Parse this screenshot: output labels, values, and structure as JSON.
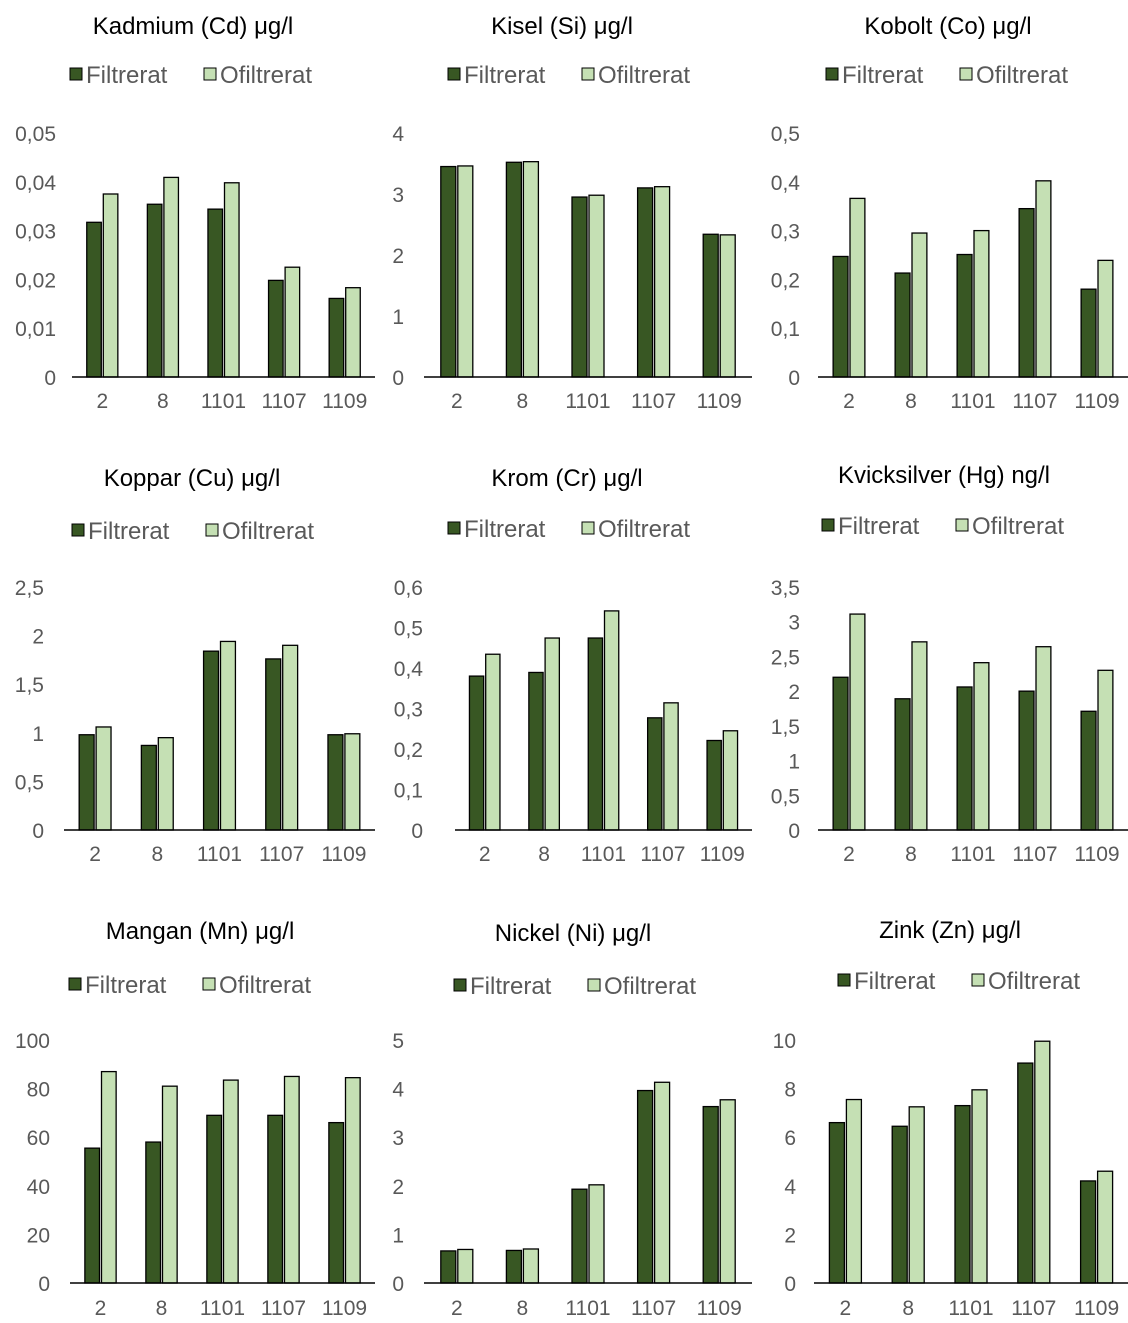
{
  "legend_labels": [
    "Filtrerat",
    "Ofiltrerat"
  ],
  "colors": {
    "filtrerat": "#385723",
    "ofiltrerat": "#C5E0B4",
    "bar_outline": "#000000",
    "axis": "#000000",
    "text": "#000000",
    "tick_text": "#595959"
  },
  "chart_data": [
    {
      "type": "bar",
      "title": "Kadmium (Cd) μg/l",
      "categories": [
        "2",
        "8",
        "1101",
        "1107",
        "1109"
      ],
      "yticks": [
        "0",
        "0,01",
        "0,02",
        "0,03",
        "0,04",
        "0,05"
      ],
      "ylim": [
        0,
        0.05
      ],
      "grid": false,
      "legend": "top-left",
      "series": [
        {
          "name": "Filtrerat",
          "values": [
            0.0317,
            0.0354,
            0.0344,
            0.0198,
            0.0161
          ]
        },
        {
          "name": "Ofiltrerat",
          "values": [
            0.0375,
            0.0409,
            0.0398,
            0.0225,
            0.0183
          ]
        }
      ]
    },
    {
      "type": "bar",
      "title": "Kisel (Si) μg/l",
      "categories": [
        "2",
        "8",
        "1101",
        "1107",
        "1109"
      ],
      "yticks": [
        "0",
        "1",
        "2",
        "3",
        "4"
      ],
      "ylim": [
        0,
        4
      ],
      "grid": false,
      "legend": "top-left",
      "series": [
        {
          "name": "Filtrerat",
          "values": [
            3.45,
            3.52,
            2.95,
            3.1,
            2.34
          ]
        },
        {
          "name": "Ofiltrerat",
          "values": [
            3.46,
            3.53,
            2.98,
            3.12,
            2.33
          ]
        }
      ]
    },
    {
      "type": "bar",
      "title": "Kobolt (Co) μg/l",
      "categories": [
        "2",
        "8",
        "1101",
        "1107",
        "1109"
      ],
      "yticks": [
        "0",
        "0,1",
        "0,2",
        "0,3",
        "0,4",
        "0,5"
      ],
      "ylim": [
        0,
        0.5
      ],
      "grid": false,
      "legend": "top-left",
      "series": [
        {
          "name": "Filtrerat",
          "values": [
            0.247,
            0.213,
            0.251,
            0.345,
            0.18
          ]
        },
        {
          "name": "Ofiltrerat",
          "values": [
            0.366,
            0.295,
            0.3,
            0.402,
            0.239
          ]
        }
      ]
    },
    {
      "type": "bar",
      "title": "Koppar (Cu) μg/l",
      "categories": [
        "2",
        "8",
        "1101",
        "1107",
        "1109"
      ],
      "yticks": [
        "0",
        "0,5",
        "1",
        "1,5",
        "2",
        "2,5"
      ],
      "ylim": [
        0,
        2.5
      ],
      "grid": false,
      "legend": "top-left",
      "series": [
        {
          "name": "Filtrerat",
          "values": [
            0.98,
            0.87,
            1.84,
            1.76,
            0.98
          ]
        },
        {
          "name": "Ofiltrerat",
          "values": [
            1.06,
            0.95,
            1.94,
            1.9,
            0.99
          ]
        }
      ]
    },
    {
      "type": "bar",
      "title": "Krom (Cr) μg/l",
      "categories": [
        "2",
        "8",
        "1101",
        "1107",
        "1109"
      ],
      "yticks": [
        "0",
        "0,1",
        "0,2",
        "0,3",
        "0,4",
        "0,5",
        "0,6"
      ],
      "ylim": [
        0,
        0.6
      ],
      "grid": false,
      "legend": "top-left",
      "series": [
        {
          "name": "Filtrerat",
          "values": [
            0.38,
            0.389,
            0.474,
            0.277,
            0.221
          ]
        },
        {
          "name": "Ofiltrerat",
          "values": [
            0.434,
            0.474,
            0.541,
            0.314,
            0.245
          ]
        }
      ]
    },
    {
      "type": "bar",
      "title": "Kvicksilver (Hg) ng/l",
      "categories": [
        "2",
        "8",
        "1101",
        "1107",
        "1109"
      ],
      "yticks": [
        "0",
        "0,5",
        "1",
        "1,5",
        "2",
        "2,5",
        "3",
        "3,5"
      ],
      "ylim": [
        0,
        3.5
      ],
      "grid": false,
      "legend": "top-left",
      "series": [
        {
          "name": "Filtrerat",
          "values": [
            2.2,
            1.89,
            2.06,
            2.0,
            1.71
          ]
        },
        {
          "name": "Ofiltrerat",
          "values": [
            3.11,
            2.71,
            2.41,
            2.64,
            2.3
          ]
        }
      ]
    },
    {
      "type": "bar",
      "title": "Mangan (Mn) μg/l",
      "categories": [
        "2",
        "8",
        "1101",
        "1107",
        "1109"
      ],
      "yticks": [
        "0",
        "20",
        "40",
        "60",
        "80",
        "100"
      ],
      "ylim": [
        0,
        100
      ],
      "grid": false,
      "legend": "top-left",
      "series": [
        {
          "name": "Filtrerat",
          "values": [
            55.5,
            58.0,
            69.0,
            69.0,
            66.0
          ]
        },
        {
          "name": "Ofiltrerat",
          "values": [
            87.0,
            81.0,
            83.5,
            85.0,
            84.5
          ]
        }
      ]
    },
    {
      "type": "bar",
      "title": "Nickel (Ni) μg/l",
      "categories": [
        "2",
        "8",
        "1101",
        "1107",
        "1109"
      ],
      "yticks": [
        "0",
        "1",
        "2",
        "3",
        "4",
        "5"
      ],
      "ylim": [
        0,
        5
      ],
      "grid": false,
      "legend": "top-left",
      "series": [
        {
          "name": "Filtrerat",
          "values": [
            0.66,
            0.67,
            1.93,
            3.96,
            3.63
          ]
        },
        {
          "name": "Ofiltrerat",
          "values": [
            0.69,
            0.7,
            2.02,
            4.13,
            3.77
          ]
        }
      ]
    },
    {
      "type": "bar",
      "title": "Zink (Zn) μg/l",
      "categories": [
        "2",
        "8",
        "1101",
        "1107",
        "1109"
      ],
      "yticks": [
        "0",
        "2",
        "4",
        "6",
        "8",
        "10"
      ],
      "ylim": [
        0,
        10
      ],
      "grid": false,
      "legend": "top-left",
      "series": [
        {
          "name": "Filtrerat",
          "values": [
            6.6,
            6.45,
            7.3,
            9.05,
            4.2
          ]
        },
        {
          "name": "Ofiltrerat",
          "values": [
            7.55,
            7.25,
            7.95,
            9.95,
            4.6
          ]
        }
      ]
    }
  ]
}
